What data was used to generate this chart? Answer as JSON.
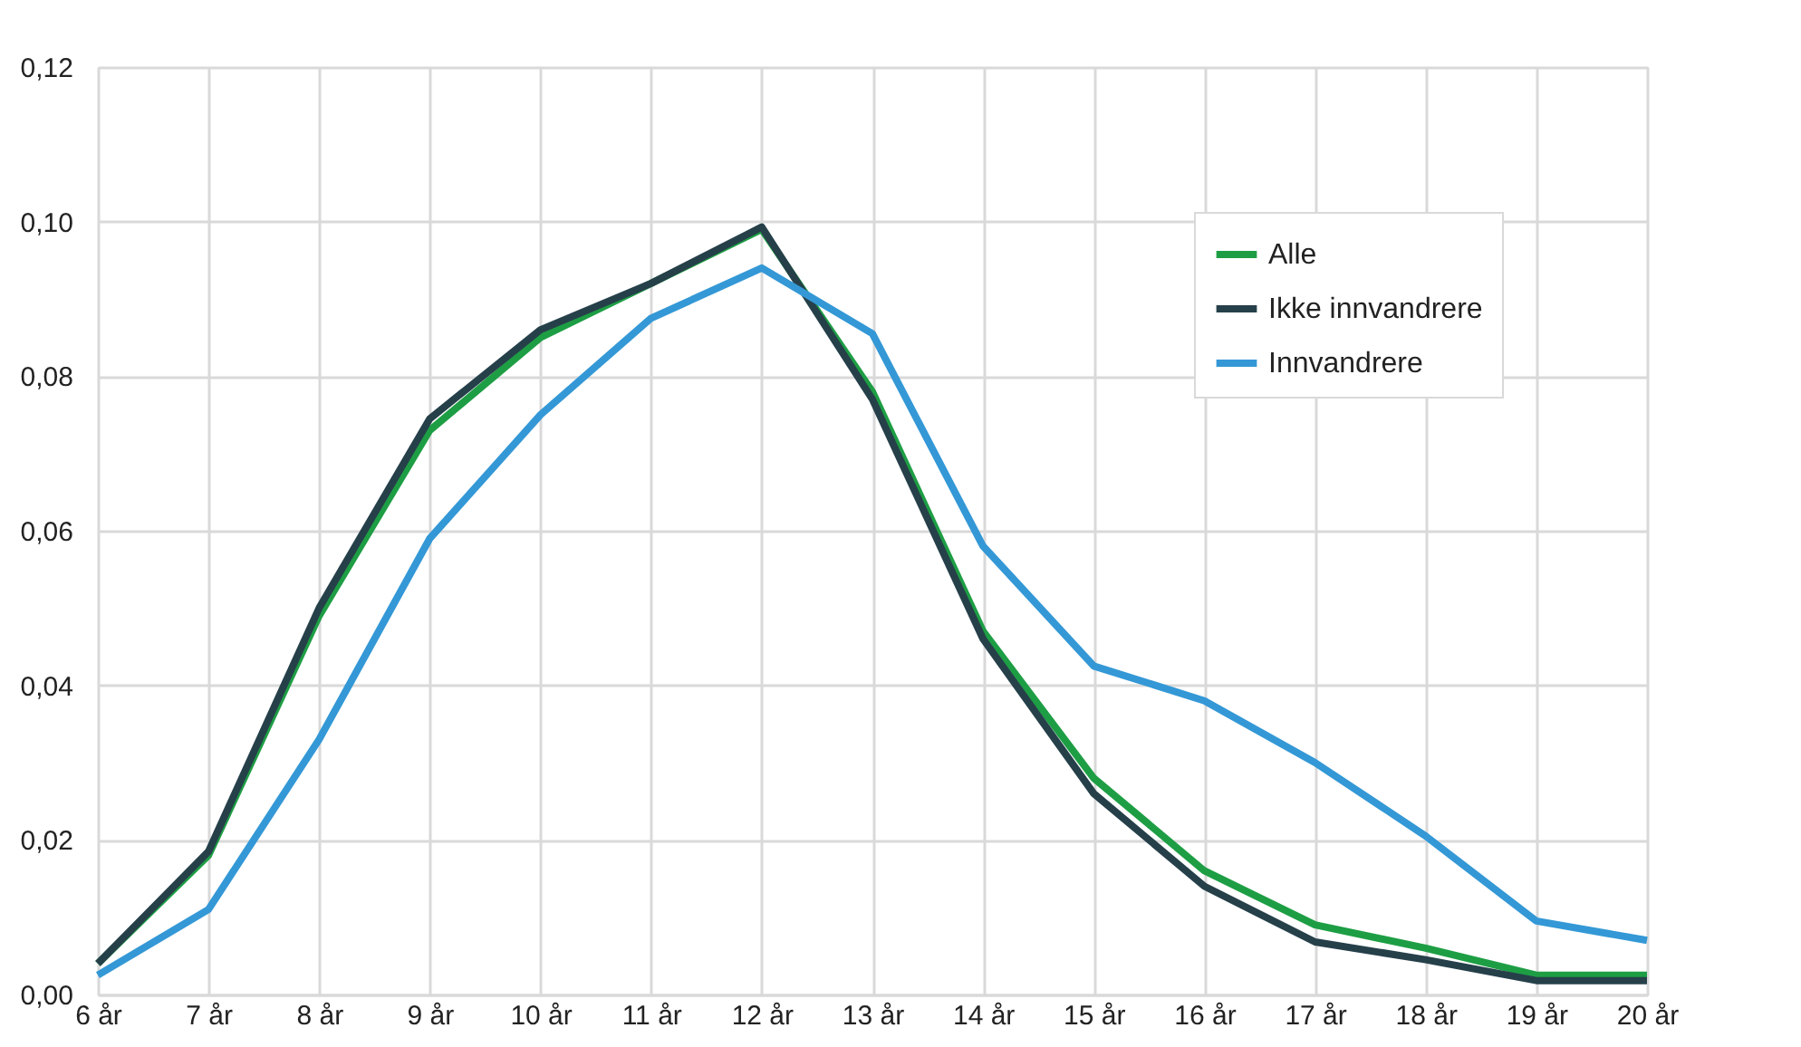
{
  "chart_data": {
    "type": "line",
    "categories": [
      "6 år",
      "7 år",
      "8 år",
      "9 år",
      "10 år",
      "11 år",
      "12 år",
      "13 år",
      "14 år",
      "15 år",
      "16 år",
      "17 år",
      "18 år",
      "19 år",
      "20 år"
    ],
    "series": [
      {
        "name": "Alle",
        "color": "#1e9e44",
        "values": [
          0.004,
          0.018,
          0.049,
          0.073,
          0.085,
          0.092,
          0.099,
          0.078,
          0.047,
          0.028,
          0.016,
          0.009,
          0.006,
          0.0025,
          0.0025
        ]
      },
      {
        "name": "Ikke innvandrere",
        "color": "#26404a",
        "values": [
          0.004,
          0.0185,
          0.05,
          0.0745,
          0.086,
          0.092,
          0.0993,
          0.077,
          0.046,
          0.026,
          0.014,
          0.0068,
          0.0045,
          0.0018,
          0.0018
        ]
      },
      {
        "name": "Innvandrere",
        "color": "#3498d6",
        "values": [
          0.0025,
          0.011,
          0.033,
          0.059,
          0.075,
          0.0875,
          0.094,
          0.0855,
          0.058,
          0.0425,
          0.038,
          0.03,
          0.0205,
          0.0095,
          0.007
        ]
      }
    ],
    "ylim": [
      0,
      0.12
    ],
    "yticks": [
      {
        "value": 0,
        "label": "0,00"
      },
      {
        "value": 0.02,
        "label": "0,02"
      },
      {
        "value": 0.04,
        "label": "0,04"
      },
      {
        "value": 0.06,
        "label": "0,06"
      },
      {
        "value": 0.08,
        "label": "0,08"
      },
      {
        "value": 0.1,
        "label": "0,10"
      },
      {
        "value": 0.12,
        "label": "0,12"
      }
    ],
    "grid": true,
    "legend": "top right",
    "marker": "none",
    "line_style": "solid"
  }
}
